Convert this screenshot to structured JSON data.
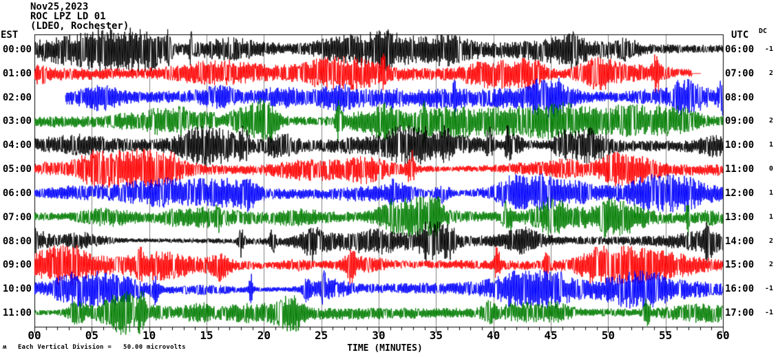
{
  "chart_data": {
    "type": "line",
    "subtype": "helicorder_seismogram",
    "title_lines": [
      "Nov25,2023",
      "ROC LPZ LD 01",
      "(LDEO, Rochester)"
    ],
    "left_time_header": "EST",
    "right_time_header": "UTC",
    "dc_column_header": "DC",
    "xlabel": "TIME (MINUTES)",
    "x_tick_labels": [
      "00",
      "05",
      "10",
      "15",
      "20",
      "25",
      "30",
      "35",
      "40",
      "45",
      "50",
      "55",
      "60"
    ],
    "x_range_minutes": [
      0,
      60
    ],
    "x_major_tick_minutes": 5,
    "x_minor_tick_minutes": 1,
    "grid": "vertical gray lines every 5 minutes, framed plot box",
    "legend_position": "none",
    "scale_note": "Each Vertical Division =   50.00 microvolts",
    "colors": {
      "background": "#ffffff",
      "frame": "#000000",
      "grid": "#808080",
      "trace_cycle": [
        "#000000",
        "#ff0000",
        "#0000ff",
        "#007d00"
      ]
    },
    "rows": [
      {
        "est": "00:00",
        "utc": "06:00",
        "dc": "-1",
        "color": "#000000",
        "start_min": 0,
        "end_min": 60,
        "flat_from_min": null,
        "activity": 1.1
      },
      {
        "est": "01:00",
        "utc": "07:00",
        "dc": "2",
        "color": "#ff0000",
        "start_min": 0,
        "end_min": 58.1,
        "flat_from_min": 57.3,
        "activity": 1.0
      },
      {
        "est": "02:00",
        "utc": "08:00",
        "dc": "",
        "color": "#0000ff",
        "start_min": 2.7,
        "end_min": 60,
        "flat_from_min": null,
        "activity": 1.0
      },
      {
        "est": "03:00",
        "utc": "09:00",
        "dc": "2",
        "color": "#007d00",
        "start_min": 0,
        "end_min": 60,
        "flat_from_min": null,
        "activity": 1.1
      },
      {
        "est": "04:00",
        "utc": "10:00",
        "dc": "1",
        "color": "#000000",
        "start_min": 0,
        "end_min": 60,
        "flat_from_min": null,
        "activity": 1.0
      },
      {
        "est": "05:00",
        "utc": "11:00",
        "dc": "0",
        "color": "#ff0000",
        "start_min": 0,
        "end_min": 60,
        "flat_from_min": null,
        "activity": 1.0
      },
      {
        "est": "06:00",
        "utc": "12:00",
        "dc": "1",
        "color": "#0000ff",
        "start_min": 0,
        "end_min": 60,
        "flat_from_min": null,
        "activity": 0.95
      },
      {
        "est": "07:00",
        "utc": "13:00",
        "dc": "1",
        "color": "#007d00",
        "start_min": 0,
        "end_min": 60,
        "flat_from_min": null,
        "activity": 1.0
      },
      {
        "est": "08:00",
        "utc": "14:00",
        "dc": "2",
        "color": "#000000",
        "start_min": 0,
        "end_min": 60,
        "flat_from_min": null,
        "activity": 1.0
      },
      {
        "est": "09:00",
        "utc": "15:00",
        "dc": "2",
        "color": "#ff0000",
        "start_min": 0,
        "end_min": 60,
        "flat_from_min": null,
        "activity": 1.0
      },
      {
        "est": "10:00",
        "utc": "16:00",
        "dc": "-1",
        "color": "#0000ff",
        "start_min": 0,
        "end_min": 60,
        "flat_from_min": null,
        "activity": 0.95
      },
      {
        "est": "11:00",
        "utc": "17:00",
        "dc": "-1",
        "color": "#007d00",
        "start_min": 0,
        "end_min": 60,
        "flat_from_min": null,
        "activity": 1.15
      }
    ],
    "waveform_note": "continuous high-frequency seismic background noise with varying-amplitude bursts; individual sample values are not readable from the image"
  },
  "footer": {
    "logo_glyph": "ʍ"
  }
}
